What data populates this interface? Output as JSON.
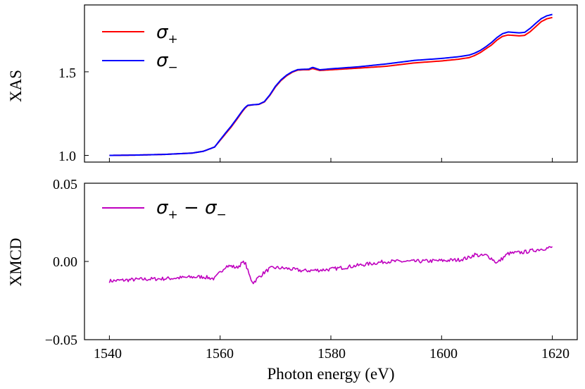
{
  "chart_data": [
    {
      "type": "line",
      "ylabel": "XAS",
      "xlabel": "",
      "xlim": [
        1535.5,
        1624.5
      ],
      "ylim": [
        0.96,
        1.9
      ],
      "xticks": [
        1540,
        1560,
        1580,
        1600,
        1620
      ],
      "yticks": [
        1.0,
        1.5
      ],
      "ytick_labels": [
        "1.0",
        "1.5"
      ],
      "legend": "top-left",
      "series": [
        {
          "name": "σ₊",
          "label_main": "σ",
          "label_sub": "+",
          "color": "#ff0000",
          "x": [
            1540,
            1545,
            1550,
            1555,
            1557,
            1559,
            1560,
            1561,
            1562,
            1563,
            1564,
            1564.5,
            1565,
            1566,
            1567,
            1568,
            1569,
            1570,
            1571,
            1572,
            1573,
            1574,
            1575,
            1576,
            1576.7,
            1578,
            1580,
            1585,
            1590,
            1595,
            1600,
            1603,
            1605,
            1606,
            1607,
            1608,
            1609,
            1610,
            1611,
            1612,
            1614,
            1615,
            1616,
            1617,
            1618,
            1619,
            1620
          ],
          "y": [
            1.0,
            1.002,
            1.006,
            1.014,
            1.025,
            1.05,
            1.09,
            1.13,
            1.17,
            1.215,
            1.262,
            1.283,
            1.298,
            1.303,
            1.305,
            1.32,
            1.36,
            1.41,
            1.448,
            1.476,
            1.497,
            1.51,
            1.512,
            1.512,
            1.52,
            1.508,
            1.512,
            1.522,
            1.533,
            1.553,
            1.565,
            1.575,
            1.585,
            1.598,
            1.615,
            1.638,
            1.66,
            1.69,
            1.712,
            1.72,
            1.715,
            1.718,
            1.74,
            1.77,
            1.8,
            1.817,
            1.825
          ]
        },
        {
          "name": "σ₋",
          "label_main": "σ",
          "label_sub": "−",
          "color": "#0000ff",
          "x": [
            1540,
            1545,
            1550,
            1555,
            1557,
            1559,
            1560,
            1561,
            1562,
            1563,
            1564,
            1564.5,
            1565,
            1566,
            1567,
            1568,
            1569,
            1570,
            1571,
            1572,
            1573,
            1574,
            1575,
            1576,
            1576.7,
            1578,
            1580,
            1585,
            1590,
            1595,
            1600,
            1603,
            1605,
            1606,
            1607,
            1608,
            1609,
            1610,
            1611,
            1612,
            1614,
            1615,
            1616,
            1617,
            1618,
            1619,
            1620
          ],
          "y": [
            1.0,
            1.002,
            1.006,
            1.014,
            1.025,
            1.05,
            1.093,
            1.135,
            1.175,
            1.22,
            1.266,
            1.286,
            1.3,
            1.303,
            1.306,
            1.322,
            1.363,
            1.414,
            1.452,
            1.48,
            1.5,
            1.513,
            1.515,
            1.516,
            1.527,
            1.512,
            1.518,
            1.53,
            1.547,
            1.568,
            1.58,
            1.59,
            1.6,
            1.612,
            1.628,
            1.65,
            1.675,
            1.705,
            1.728,
            1.738,
            1.733,
            1.736,
            1.76,
            1.79,
            1.818,
            1.835,
            1.843
          ]
        }
      ]
    },
    {
      "type": "line",
      "ylabel": "XMCD",
      "xlabel": "Photon energy (eV)",
      "xlim": [
        1535.5,
        1624.5
      ],
      "ylim": [
        -0.05,
        0.05
      ],
      "xticks": [
        1540,
        1560,
        1580,
        1600,
        1620
      ],
      "xtick_labels": [
        "1540",
        "1560",
        "1580",
        "1600",
        "1620"
      ],
      "yticks": [
        -0.05,
        0.0,
        0.05
      ],
      "ytick_labels": [
        "−0.05",
        "0.00",
        "0.05"
      ],
      "legend": "top-left",
      "series": [
        {
          "name": "σ₊ − σ₋",
          "label_main": "σ",
          "label_sub": "+",
          "label_op": " − σ",
          "label_sub2": "−",
          "color": "#bf00bf",
          "noise": 0.0012,
          "x": [
            1540,
            1545,
            1550,
            1555,
            1557,
            1558,
            1559,
            1560,
            1561,
            1562,
            1563,
            1564,
            1564.5,
            1565,
            1565.5,
            1566,
            1567,
            1568,
            1569,
            1570,
            1572,
            1575,
            1578,
            1580,
            1585,
            1590,
            1595,
            1600,
            1603,
            1605,
            1606,
            1607,
            1608,
            1609,
            1610,
            1611,
            1612,
            1615,
            1618,
            1620
          ],
          "y": [
            -0.0125,
            -0.0115,
            -0.011,
            -0.01,
            -0.0098,
            -0.0105,
            -0.011,
            -0.007,
            -0.003,
            -0.003,
            -0.004,
            -0.001,
            -0.0005,
            -0.006,
            -0.011,
            -0.0135,
            -0.01,
            -0.007,
            -0.0045,
            -0.004,
            -0.0045,
            -0.006,
            -0.0055,
            -0.005,
            -0.0025,
            0.0,
            0.0,
            0.0005,
            0.001,
            0.0025,
            0.0045,
            0.0035,
            0.004,
            0.002,
            -0.001,
            0.002,
            0.005,
            0.006,
            0.008,
            0.009
          ]
        }
      ]
    }
  ]
}
